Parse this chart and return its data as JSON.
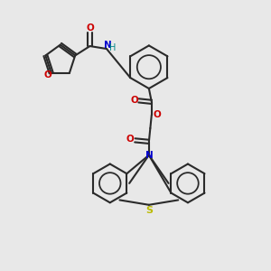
{
  "background_color": "#e8e8e8",
  "bond_color": "#2a2a2a",
  "o_color": "#cc0000",
  "n_color": "#0000cc",
  "s_color": "#bbbb00",
  "h_color": "#008888",
  "figsize": [
    3.0,
    3.0
  ],
  "dpi": 100,
  "xlim": [
    0,
    10
  ],
  "ylim": [
    0,
    10
  ]
}
